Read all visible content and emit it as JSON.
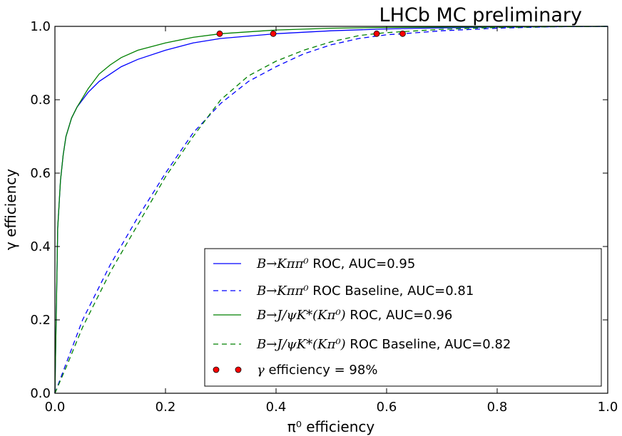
{
  "chart_data": {
    "type": "line",
    "title": "LHCb MC preliminary",
    "xlabel": "π⁰ efficiency",
    "ylabel": "γ efficiency",
    "xlim": [
      0.0,
      1.0
    ],
    "ylim": [
      0.0,
      1.0
    ],
    "xticks": [
      "0.0",
      "0.2",
      "0.4",
      "0.6",
      "0.8",
      "1.0"
    ],
    "yticks": [
      "0.0",
      "0.2",
      "0.4",
      "0.6",
      "0.8",
      "1.0"
    ],
    "grid": false,
    "legend_position": "lower-right",
    "series": [
      {
        "name": "B→Kππ⁰ ROC, AUC=0.95",
        "color": "#0000ff",
        "style": "solid",
        "x": [
          0.0,
          0.005,
          0.01,
          0.015,
          0.02,
          0.03,
          0.04,
          0.05,
          0.06,
          0.08,
          0.1,
          0.12,
          0.15,
          0.2,
          0.25,
          0.3,
          0.4,
          0.5,
          0.6,
          0.7,
          0.8,
          0.9,
          1.0
        ],
        "y": [
          0.0,
          0.45,
          0.58,
          0.65,
          0.7,
          0.75,
          0.78,
          0.8,
          0.82,
          0.85,
          0.87,
          0.89,
          0.91,
          0.935,
          0.955,
          0.967,
          0.98,
          0.988,
          0.993,
          0.996,
          0.998,
          0.999,
          1.0
        ]
      },
      {
        "name": "B→Kππ⁰ ROC Baseline, AUC=0.81",
        "color": "#0000ff",
        "style": "dashed",
        "x": [
          0.0,
          0.02,
          0.05,
          0.1,
          0.15,
          0.2,
          0.25,
          0.3,
          0.35,
          0.4,
          0.45,
          0.5,
          0.55,
          0.6,
          0.63,
          0.7,
          0.8,
          0.9,
          1.0
        ],
        "y": [
          0.0,
          0.08,
          0.2,
          0.35,
          0.48,
          0.6,
          0.71,
          0.79,
          0.85,
          0.89,
          0.925,
          0.95,
          0.967,
          0.977,
          0.98,
          0.988,
          0.995,
          0.999,
          1.0
        ]
      },
      {
        "name": "B→J/ψK*(Kπ⁰) ROC, AUC=0.96",
        "color": "#008000",
        "style": "solid",
        "x": [
          0.0,
          0.005,
          0.01,
          0.015,
          0.02,
          0.03,
          0.04,
          0.05,
          0.06,
          0.08,
          0.1,
          0.12,
          0.15,
          0.2,
          0.25,
          0.3,
          0.4,
          0.5,
          0.6,
          0.7,
          0.8,
          0.9,
          1.0
        ],
        "y": [
          0.0,
          0.45,
          0.58,
          0.65,
          0.7,
          0.75,
          0.78,
          0.805,
          0.83,
          0.87,
          0.895,
          0.915,
          0.935,
          0.955,
          0.97,
          0.98,
          0.99,
          0.995,
          0.997,
          0.998,
          0.999,
          1.0,
          1.0
        ]
      },
      {
        "name": "B→J/ψK*(Kπ⁰) ROC Baseline, AUC=0.82",
        "color": "#008000",
        "style": "dashed",
        "x": [
          0.0,
          0.02,
          0.05,
          0.1,
          0.15,
          0.2,
          0.25,
          0.3,
          0.35,
          0.4,
          0.45,
          0.5,
          0.55,
          0.58,
          0.6,
          0.7,
          0.8,
          0.9,
          1.0
        ],
        "y": [
          0.0,
          0.07,
          0.18,
          0.33,
          0.46,
          0.59,
          0.7,
          0.8,
          0.865,
          0.905,
          0.935,
          0.958,
          0.975,
          0.98,
          0.983,
          0.992,
          0.997,
          0.999,
          1.0
        ]
      }
    ],
    "markers": {
      "name": "γ efficiency = 98%",
      "color": "#ff0000",
      "points": [
        {
          "x": 0.298,
          "y": 0.98
        },
        {
          "x": 0.395,
          "y": 0.98
        },
        {
          "x": 0.582,
          "y": 0.98
        },
        {
          "x": 0.629,
          "y": 0.98
        }
      ]
    },
    "legend": [
      {
        "pre": "B→Kππ⁰",
        "post": " ROC, AUC=0.95"
      },
      {
        "pre": "B→Kππ⁰",
        "post": " ROC Baseline, AUC=0.81"
      },
      {
        "pre": "B→J/ψK*(Kπ⁰)",
        "post": " ROC, AUC=0.96"
      },
      {
        "pre": "B→J/ψK*(Kπ⁰)",
        "post": " ROC Baseline, AUC=0.82"
      },
      {
        "pre": "γ",
        "post": " efficiency = 98%"
      }
    ]
  }
}
